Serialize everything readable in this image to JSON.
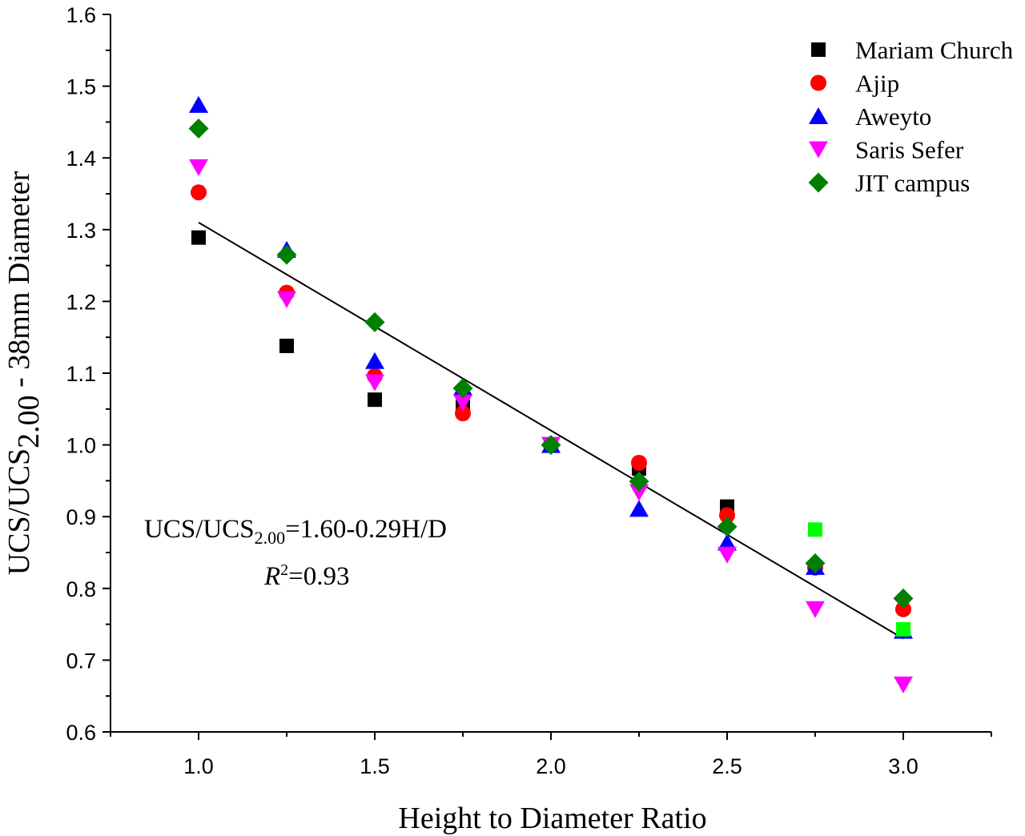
{
  "chart_data": {
    "type": "scatter",
    "xlabel": "Height to Diameter Ratio",
    "ylabel_main": "UCS/UCS",
    "ylabel_sub": "2.00",
    "ylabel_rest": " - 38mm Diameter",
    "xlim": [
      0.75,
      3.25
    ],
    "ylim": [
      0.6,
      1.6
    ],
    "xticks": [
      "1.0",
      "1.5",
      "2.0",
      "2.5",
      "3.0"
    ],
    "xtick_values": [
      1.0,
      1.5,
      2.0,
      2.5,
      3.0
    ],
    "yticks": [
      "0.6",
      "0.7",
      "0.8",
      "0.9",
      "1.0",
      "1.1",
      "1.2",
      "1.3",
      "1.4",
      "1.5",
      "1.6"
    ],
    "ytick_values": [
      0.6,
      0.7,
      0.8,
      0.9,
      1.0,
      1.1,
      1.2,
      1.3,
      1.4,
      1.5,
      1.6
    ],
    "grid": false,
    "legend_position": "top-right",
    "series": [
      {
        "name": "Mariam Church",
        "marker": "square",
        "color": "#000000",
        "x": [
          1.0,
          1.25,
          1.5,
          1.75,
          2.0,
          2.25,
          2.5
        ],
        "y": [
          1.289,
          1.138,
          1.063,
          1.053,
          1.0,
          0.967,
          0.914
        ]
      },
      {
        "name": "Ajip",
        "marker": "circle",
        "color": "#ff0000",
        "x": [
          1.0,
          1.25,
          1.5,
          1.75,
          2.0,
          2.25,
          2.5,
          2.75,
          3.0
        ],
        "y": [
          1.352,
          1.212,
          1.096,
          1.044,
          1.0,
          0.975,
          0.902,
          0.829,
          0.771
        ]
      },
      {
        "name": "Aweyto",
        "marker": "triangle-up",
        "color": "#0000ff",
        "x": [
          1.0,
          1.25,
          1.5,
          1.75,
          2.0,
          2.25,
          2.5,
          2.75,
          3.0
        ],
        "y": [
          1.474,
          1.272,
          1.117,
          1.08,
          1.0,
          0.911,
          0.864,
          0.83,
          0.741
        ]
      },
      {
        "name": "Saris Sefer",
        "marker": "triangle-down",
        "color": "#ff00ff",
        "x": [
          1.0,
          1.25,
          1.5,
          1.75,
          2.0,
          2.25,
          2.5,
          2.75,
          3.0
        ],
        "y": [
          1.387,
          1.203,
          1.087,
          1.059,
          1.0,
          0.934,
          0.847,
          0.771,
          0.666
        ]
      },
      {
        "name": "JIT campus",
        "marker": "diamond",
        "color": "#007f00",
        "x": [
          1.0,
          1.25,
          1.5,
          1.75,
          2.0,
          2.25,
          2.5,
          2.75,
          3.0
        ],
        "y": [
          1.441,
          1.265,
          1.171,
          1.079,
          1.0,
          0.949,
          0.886,
          0.835,
          0.786
        ]
      },
      {
        "marker": "square",
        "color": "#00ff00",
        "x": [
          2.75,
          3.0
        ],
        "y": [
          0.882,
          0.743
        ]
      }
    ],
    "fit_line": {
      "x": [
        1.0,
        3.0
      ],
      "y": [
        1.31,
        0.73
      ],
      "color": "#000000"
    },
    "annotation": {
      "equation_prefix": "UCS/UCS",
      "equation_sub": "2.00",
      "equation_rest": "=1.60-0.29H/D",
      "r2_label": "R",
      "r2_sup": "2",
      "r2_value": "=0.93"
    }
  }
}
